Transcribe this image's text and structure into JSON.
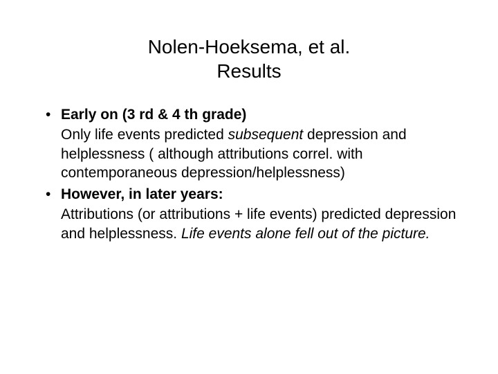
{
  "title_line1": "Nolen-Hoeksema, et al.",
  "title_line2": "Results",
  "bullets": [
    {
      "lead": "Early on (3 rd & 4 th grade)",
      "sub_pre": "Only life events predicted ",
      "sub_italic": "subsequent",
      "sub_post": " depression and helplessness ( although attributions correl. with contemporaneous depression/helplessness)"
    },
    {
      "lead": "However, in later years:",
      "sub_pre": "Attributions (or attributions + life events) predicted depression and helplessness. ",
      "sub_italic": "Life events alone fell out of the picture.",
      "sub_post": ""
    }
  ],
  "colors": {
    "background": "#ffffff",
    "text": "#000000"
  },
  "typography": {
    "title_fontsize": 28,
    "body_fontsize": 21,
    "font_family": "Arial"
  }
}
